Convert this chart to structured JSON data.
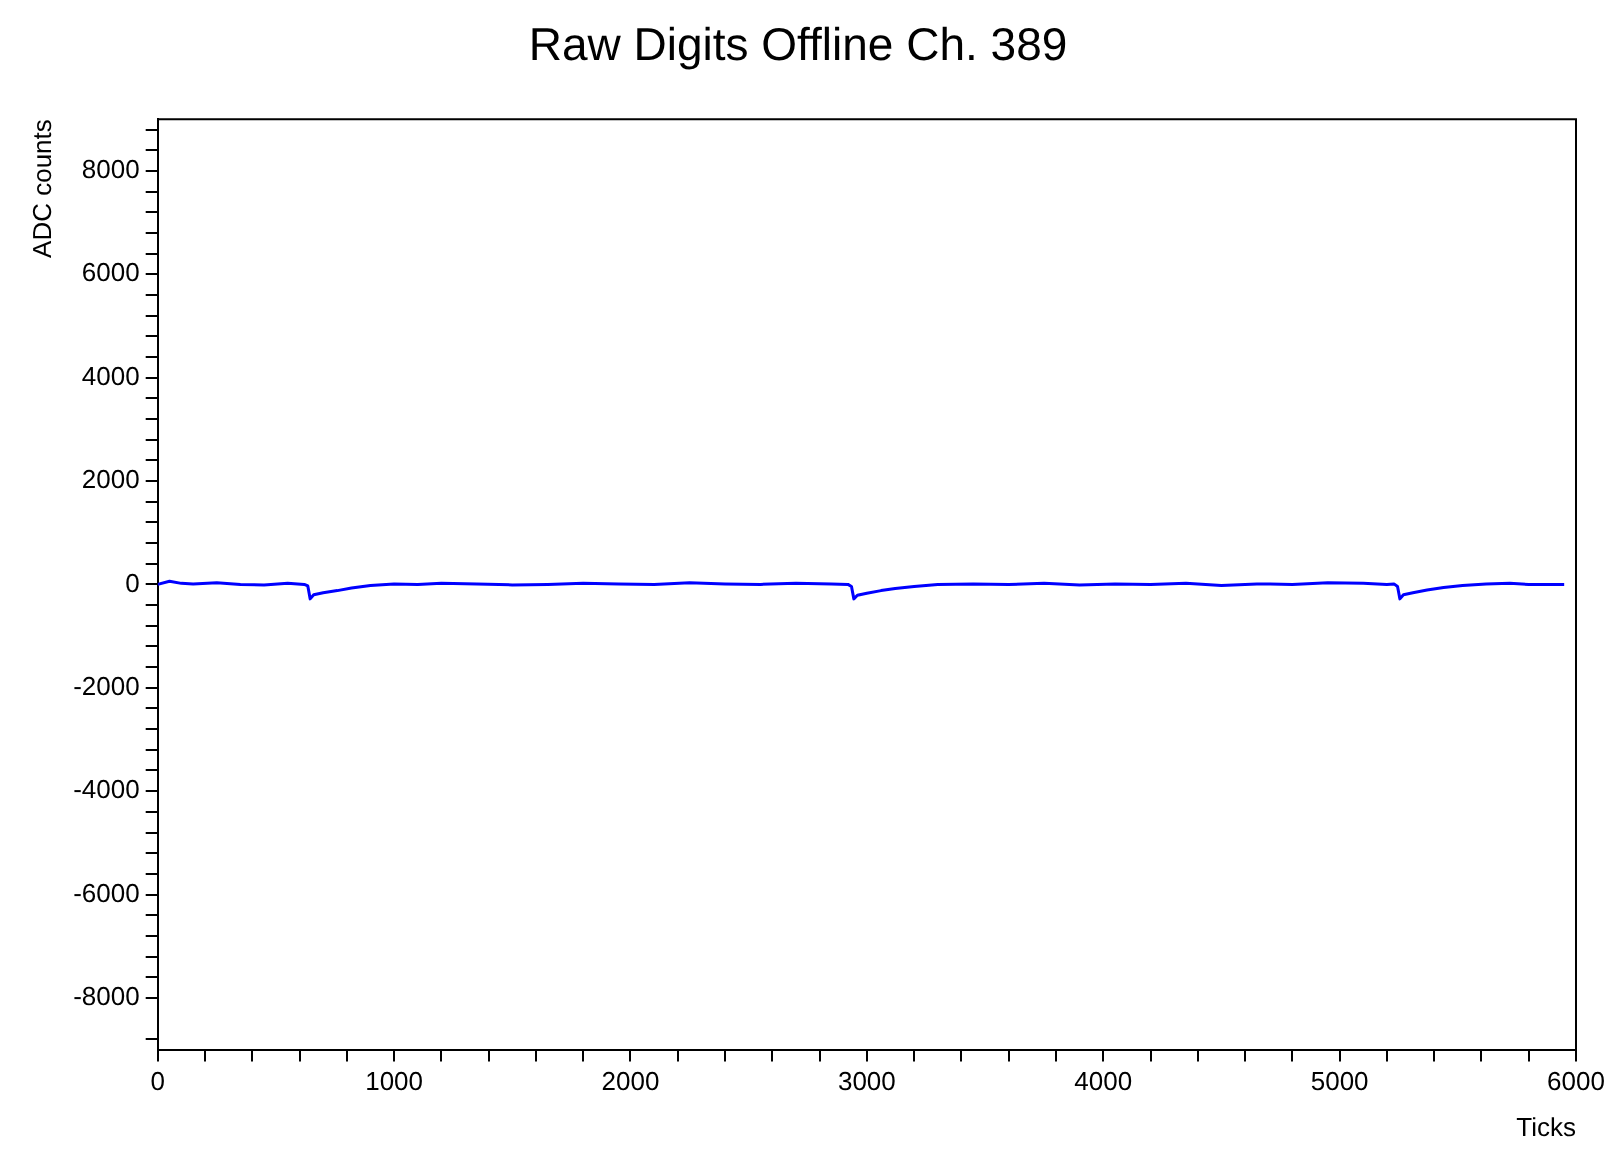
{
  "chart_data": {
    "type": "line",
    "title": "Raw Digits Offline Ch. 389",
    "xlabel": "Ticks",
    "ylabel": "ADC counts",
    "xlim": [
      0,
      6000
    ],
    "ylim": [
      -9000,
      9000
    ],
    "xticks": [
      0,
      {
        "value": 200,
        "label": null
      },
      {
        "value": 400,
        "label": null
      },
      {
        "value": 600,
        "label": null
      },
      {
        "value": 800,
        "label": null
      },
      1000,
      {
        "value": 1200,
        "label": null
      },
      {
        "value": 1400,
        "label": null
      },
      {
        "value": 1600,
        "label": null
      },
      {
        "value": 1800,
        "label": null
      },
      2000,
      {
        "value": 2200,
        "label": null
      },
      {
        "value": 2400,
        "label": null
      },
      {
        "value": 2600,
        "label": null
      },
      {
        "value": 2800,
        "label": null
      },
      3000,
      {
        "value": 3200,
        "label": null
      },
      {
        "value": 3400,
        "label": null
      },
      {
        "value": 3600,
        "label": null
      },
      {
        "value": 3800,
        "label": null
      },
      4000,
      {
        "value": 4200,
        "label": null
      },
      {
        "value": 4400,
        "label": null
      },
      {
        "value": 4600,
        "label": null
      },
      {
        "value": 4800,
        "label": null
      },
      5000,
      {
        "value": 5200,
        "label": null
      },
      {
        "value": 5400,
        "label": null
      },
      {
        "value": 5600,
        "label": null
      },
      {
        "value": 5800,
        "label": null
      },
      6000
    ],
    "yticks": [
      {
        "value": -8800,
        "label": null
      },
      -8000,
      {
        "value": -7600,
        "label": null
      },
      {
        "value": -7200,
        "label": null
      },
      {
        "value": -6800,
        "label": null
      },
      {
        "value": -6400,
        "label": null
      },
      -6000,
      {
        "value": -5600,
        "label": null
      },
      {
        "value": -5200,
        "label": null
      },
      {
        "value": -4800,
        "label": null
      },
      {
        "value": -4400,
        "label": null
      },
      -4000,
      {
        "value": -3600,
        "label": null
      },
      {
        "value": -3200,
        "label": null
      },
      {
        "value": -2800,
        "label": null
      },
      {
        "value": -2400,
        "label": null
      },
      -2000,
      {
        "value": -1600,
        "label": null
      },
      {
        "value": -1200,
        "label": null
      },
      {
        "value": -800,
        "label": null
      },
      {
        "value": -400,
        "label": null
      },
      0,
      {
        "value": 400,
        "label": null
      },
      {
        "value": 800,
        "label": null
      },
      {
        "value": 1200,
        "label": null
      },
      {
        "value": 1600,
        "label": null
      },
      2000,
      {
        "value": 2400,
        "label": null
      },
      {
        "value": 2800,
        "label": null
      },
      {
        "value": 3200,
        "label": null
      },
      {
        "value": 3600,
        "label": null
      },
      4000,
      {
        "value": 4400,
        "label": null
      },
      {
        "value": 4800,
        "label": null
      },
      {
        "value": 5200,
        "label": null
      },
      {
        "value": 5600,
        "label": null
      },
      6000,
      {
        "value": 6400,
        "label": null
      },
      {
        "value": 6800,
        "label": null
      },
      {
        "value": 7200,
        "label": null
      },
      {
        "value": 7600,
        "label": null
      },
      8000,
      {
        "value": 8400,
        "label": null
      },
      {
        "value": 8800,
        "label": null
      }
    ],
    "grid": false,
    "legend": false,
    "marker": "none",
    "line_style": "solid",
    "series": [
      {
        "color": "#0000ff",
        "x": [
          0,
          50,
          100,
          150,
          250,
          350,
          450,
          550,
          620,
          635,
          645,
          660,
          700,
          760,
          820,
          900,
          1000,
          1100,
          1200,
          1350,
          1500,
          1650,
          1800,
          1950,
          2100,
          2250,
          2400,
          2550,
          2700,
          2850,
          2920,
          2935,
          2945,
          2960,
          3000,
          3060,
          3120,
          3200,
          3300,
          3450,
          3600,
          3750,
          3900,
          4050,
          4200,
          4350,
          4500,
          4650,
          4800,
          4950,
          5100,
          5200,
          5230,
          5245,
          5255,
          5270,
          5310,
          5370,
          5440,
          5520,
          5620,
          5720,
          5800,
          5850,
          5950
        ],
        "values": [
          0,
          60,
          20,
          10,
          30,
          0,
          -10,
          20,
          0,
          -30,
          -280,
          -200,
          -160,
          -120,
          -70,
          -20,
          10,
          0,
          20,
          10,
          -10,
          0,
          20,
          10,
          0,
          30,
          10,
          0,
          20,
          10,
          0,
          -40,
          -280,
          -210,
          -170,
          -120,
          -80,
          -40,
          0,
          10,
          0,
          20,
          -10,
          10,
          0,
          20,
          -20,
          10,
          0,
          30,
          20,
          0,
          10,
          -40,
          -280,
          -200,
          -160,
          -110,
          -60,
          -20,
          10,
          20,
          0,
          0,
          0
        ]
      }
    ]
  }
}
